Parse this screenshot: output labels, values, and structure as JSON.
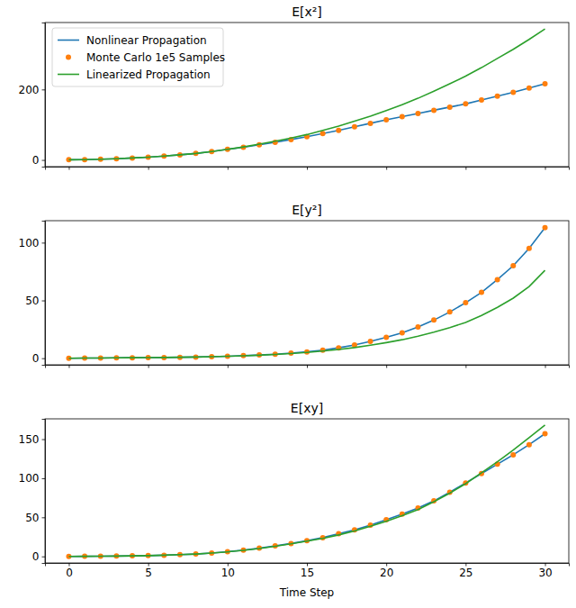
{
  "chart_data": [
    {
      "type": "line",
      "title": "E[x²]",
      "x": [
        0,
        1,
        2,
        3,
        4,
        5,
        6,
        7,
        8,
        9,
        10,
        11,
        12,
        13,
        14,
        15,
        16,
        17,
        18,
        19,
        20,
        21,
        22,
        23,
        24,
        25,
        26,
        27,
        28,
        29,
        30
      ],
      "series": [
        {
          "name": "Nonlinear Propagation",
          "color": "#1f77b4",
          "type": "line",
          "line_style": "solid",
          "values": [
            0.5,
            1,
            2,
            3.5,
            5.5,
            8,
            11,
            14.5,
            18.5,
            24,
            30,
            36,
            43,
            50,
            58,
            66,
            75,
            84,
            94,
            104,
            114,
            123,
            132,
            141,
            150,
            159,
            170,
            181,
            192,
            204,
            216
          ]
        },
        {
          "name": "Monte Carlo 1e5 Samples",
          "color": "#ff7f0e",
          "type": "scatter",
          "marker": "circle",
          "values": [
            0.5,
            1,
            2,
            3.5,
            5.5,
            8,
            11,
            14.5,
            18.5,
            24,
            30,
            36,
            43,
            50,
            58,
            66,
            75,
            84,
            94,
            104,
            114,
            123,
            132,
            141,
            150,
            159,
            170,
            181,
            192,
            204,
            216
          ]
        },
        {
          "name": "Linearized Propagation",
          "color": "#2ca02c",
          "type": "line",
          "line_style": "solid",
          "values": [
            0.5,
            1,
            2,
            3.5,
            5.5,
            8,
            11,
            14.5,
            18.5,
            24,
            30,
            37,
            45,
            53,
            62,
            72,
            84,
            96,
            110,
            124,
            140,
            157,
            175,
            195,
            216,
            238,
            262,
            288,
            314,
            342,
            372
          ]
        }
      ],
      "xlim": [
        -1.5,
        31.5
      ],
      "xticks": [
        0,
        5,
        10,
        15,
        20,
        25,
        30
      ],
      "ylim": [
        -19,
        390
      ],
      "yticks": [
        0,
        200
      ],
      "legend": "upper left",
      "tick_labels": "y"
    },
    {
      "type": "line",
      "title": "E[y²]",
      "x": [
        0,
        1,
        2,
        3,
        4,
        5,
        6,
        7,
        8,
        9,
        10,
        11,
        12,
        13,
        14,
        15,
        16,
        17,
        18,
        19,
        20,
        21,
        22,
        23,
        24,
        25,
        26,
        27,
        28,
        29,
        30
      ],
      "series": [
        {
          "name": "Nonlinear Propagation",
          "color": "#1f77b4",
          "type": "line",
          "line_style": "solid",
          "values": [
            0,
            0.1,
            0.2,
            0.3,
            0.4,
            0.5,
            0.6,
            0.8,
            1,
            1.3,
            1.7,
            2.2,
            2.8,
            3.5,
            4.4,
            5.5,
            7,
            9,
            11.5,
            14.5,
            18,
            22,
            27,
            33,
            40,
            48,
            57,
            68,
            80,
            95,
            113
          ]
        },
        {
          "name": "Monte Carlo 1e5 Samples",
          "color": "#ff7f0e",
          "type": "scatter",
          "marker": "circle",
          "values": [
            0,
            0.1,
            0.2,
            0.3,
            0.4,
            0.5,
            0.6,
            0.8,
            1,
            1.3,
            1.7,
            2.2,
            2.8,
            3.5,
            4.4,
            5.5,
            7,
            9,
            11.5,
            14.5,
            18,
            22,
            27,
            33,
            40,
            48,
            57,
            68,
            80,
            95,
            113
          ]
        },
        {
          "name": "Linearized Propagation",
          "color": "#2ca02c",
          "type": "line",
          "line_style": "solid",
          "values": [
            0,
            0.1,
            0.2,
            0.3,
            0.4,
            0.5,
            0.6,
            0.8,
            1,
            1.3,
            1.7,
            2.1,
            2.6,
            3.3,
            4.1,
            5,
            6.2,
            7.6,
            9.2,
            11.2,
            13.5,
            16,
            19,
            22.5,
            26.5,
            31,
            37,
            44,
            52,
            62,
            76
          ]
        }
      ],
      "xlim": [
        -1.5,
        31.5
      ],
      "xticks": [
        0,
        5,
        10,
        15,
        20,
        25,
        30
      ],
      "ylim": [
        -5.7,
        119
      ],
      "yticks": [
        0,
        50,
        100
      ],
      "tick_labels": "y"
    },
    {
      "type": "line",
      "title": "E[xy]",
      "x_label": "Time Step",
      "x": [
        0,
        1,
        2,
        3,
        4,
        5,
        6,
        7,
        8,
        9,
        10,
        11,
        12,
        13,
        14,
        15,
        16,
        17,
        18,
        19,
        20,
        21,
        22,
        23,
        24,
        25,
        26,
        27,
        28,
        29,
        30
      ],
      "series": [
        {
          "name": "Nonlinear Propagation",
          "color": "#1f77b4",
          "type": "line",
          "line_style": "solid",
          "values": [
            0,
            0.1,
            0.2,
            0.4,
            0.7,
            1,
            1.5,
            2.2,
            3,
            4.3,
            6,
            8,
            10.5,
            13.5,
            16.5,
            20,
            24,
            29,
            34,
            40,
            47,
            54,
            62,
            71,
            82,
            94,
            106,
            118,
            130,
            143,
            157
          ]
        },
        {
          "name": "Monte Carlo 1e5 Samples",
          "color": "#ff7f0e",
          "type": "scatter",
          "marker": "circle",
          "values": [
            0,
            0.1,
            0.2,
            0.4,
            0.7,
            1,
            1.5,
            2.2,
            3,
            4.3,
            6,
            8,
            10.5,
            13.5,
            16.5,
            20,
            24,
            29,
            34,
            40,
            47,
            54,
            62,
            71,
            82,
            94,
            106,
            118,
            130,
            143,
            157
          ]
        },
        {
          "name": "Linearized Propagation",
          "color": "#2ca02c",
          "type": "line",
          "line_style": "solid",
          "values": [
            0,
            0.1,
            0.2,
            0.4,
            0.7,
            1,
            1.5,
            2.2,
            3,
            4.2,
            5.8,
            7.7,
            10,
            13,
            16,
            19.5,
            23,
            27.5,
            32.5,
            38.5,
            45,
            52,
            60,
            70,
            81,
            93,
            107,
            121,
            136,
            152,
            168
          ]
        }
      ],
      "xlim": [
        -1.5,
        31.5
      ],
      "xticks": [
        0,
        5,
        10,
        15,
        20,
        25,
        30
      ],
      "ylim": [
        -8.4,
        176
      ],
      "yticks": [
        0,
        50,
        100,
        150
      ]
    }
  ]
}
